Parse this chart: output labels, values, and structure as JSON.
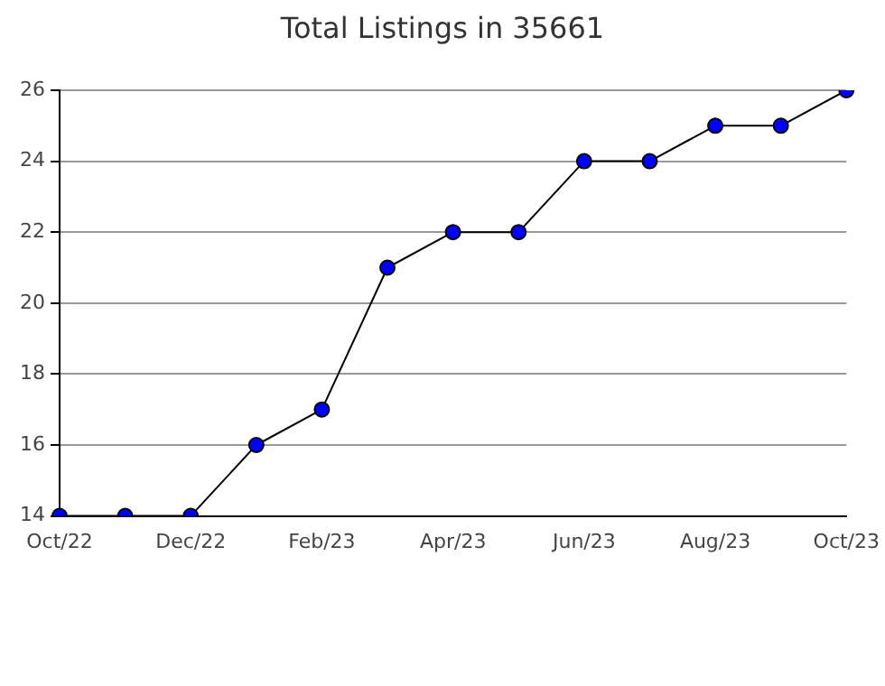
{
  "chart_data": {
    "type": "line",
    "title": "Total Listings in 35661",
    "categories": [
      "Oct/22",
      null,
      "Dec/22",
      null,
      "Feb/23",
      null,
      "Apr/23",
      null,
      "Jun/23",
      null,
      "Aug/23",
      null,
      "Oct/23"
    ],
    "series": [
      {
        "color": "#0000ff",
        "values": [
          14,
          14,
          14,
          16,
          17,
          21,
          22,
          22,
          24,
          24,
          25,
          25,
          26
        ]
      }
    ],
    "ylim": [
      14,
      26
    ],
    "yticks": [
      14,
      16,
      18,
      20,
      22,
      24,
      26
    ],
    "grid": "y",
    "legend": false,
    "marker": "circle",
    "line_style": "solid"
  }
}
